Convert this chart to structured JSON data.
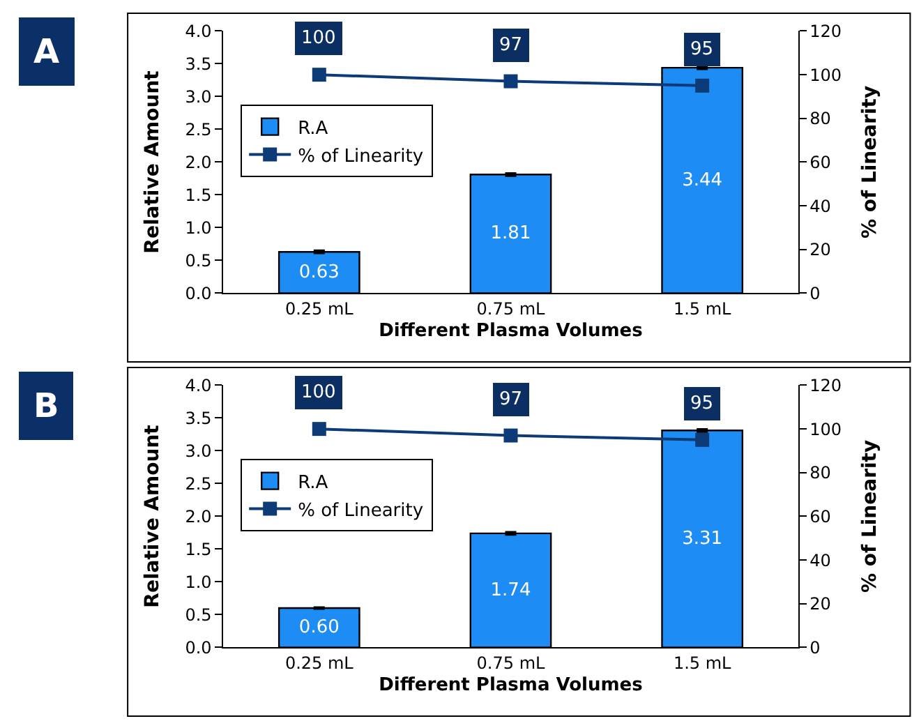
{
  "chart_data": [
    {
      "type": "bar",
      "title": "A",
      "xlabel": "Different Plasma Volumes",
      "ylabel": "Relative Amount",
      "y2label": "% of Linearity",
      "categories": [
        "0.25 mL",
        "0.75 mL",
        "1.5 mL"
      ],
      "series": [
        {
          "name": "R.A",
          "color": "#1e8cf5",
          "values": [
            0.63,
            1.81,
            3.44
          ],
          "errors": [
            0.02,
            0.02,
            0.02
          ],
          "value_labels": [
            "0.63",
            "1.81",
            "3.44"
          ]
        },
        {
          "name": "% of Linearity",
          "type": "line",
          "axis": "y2",
          "color": "#0d3b78",
          "values": [
            100,
            97,
            95
          ],
          "marker": "square",
          "line_style": "solid",
          "value_labels": [
            "100",
            "97",
            "95"
          ]
        }
      ],
      "ylim": [
        0,
        4
      ],
      "yticks": [
        {
          "value": 0,
          "label": "0.0"
        },
        0.5,
        {
          "value": 1,
          "label": "1.0"
        },
        1.5,
        {
          "value": 2,
          "label": "2.0"
        },
        2.5,
        {
          "value": 3,
          "label": "3.0"
        },
        3.5,
        {
          "value": 4,
          "label": "4.0"
        }
      ],
      "y2lim": [
        0,
        120
      ],
      "y2ticks": [
        0,
        20,
        40,
        60,
        80,
        100,
        120
      ],
      "grid": false,
      "legend": "top left"
    },
    {
      "type": "bar",
      "title": "B",
      "xlabel": "Different Plasma Volumes",
      "ylabel": "Relative Amount",
      "y2label": "% of Linearity",
      "categories": [
        "0.25 mL",
        "0.75 mL",
        "1.5 mL"
      ],
      "series": [
        {
          "name": "R.A",
          "color": "#1e8cf5",
          "values": [
            0.6,
            1.74,
            3.31
          ],
          "errors": [
            0.01,
            0.02,
            0.02
          ],
          "value_labels": [
            "0.60",
            "1.74",
            "3.31"
          ]
        },
        {
          "name": "% of Linearity",
          "type": "line",
          "axis": "y2",
          "color": "#0d3b78",
          "values": [
            100,
            97,
            95
          ],
          "marker": "square",
          "line_style": "solid",
          "value_labels": [
            "100",
            "97",
            "95"
          ]
        }
      ],
      "ylim": [
        0,
        4
      ],
      "yticks": [
        {
          "value": 0,
          "label": "0.0"
        },
        0.5,
        {
          "value": 1,
          "label": "1.0"
        },
        1.5,
        {
          "value": 2,
          "label": "2.0"
        },
        2.5,
        {
          "value": 3,
          "label": "3.0"
        },
        3.5,
        {
          "value": 4,
          "label": "4.0"
        }
      ],
      "y2lim": [
        0,
        120
      ],
      "y2ticks": [
        0,
        20,
        40,
        60,
        80,
        100,
        120
      ],
      "grid": false,
      "legend": "top left"
    }
  ]
}
